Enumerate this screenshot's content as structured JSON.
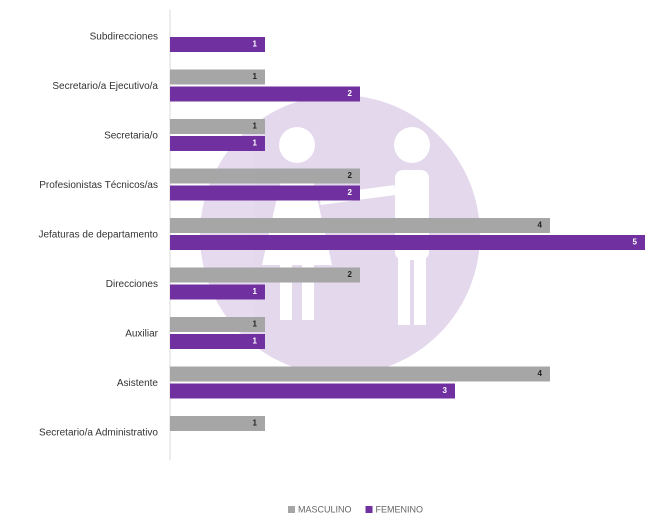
{
  "chart_data": {
    "type": "bar",
    "orientation": "horizontal",
    "categories": [
      "Subdirecciones",
      "Secretario/a Ejecutivo/a",
      "Secretaria/o",
      "Profesionistas Técnicos/as",
      "Jefaturas de departamento",
      "Direcciones",
      "Auxiliar",
      "Asistente",
      "Secretario/a Administrativo"
    ],
    "series": [
      {
        "name": "MASCULINO",
        "color": "#a6a6a6",
        "values": [
          null,
          1,
          1,
          2,
          4,
          2,
          1,
          4,
          1
        ]
      },
      {
        "name": "FEMENINO",
        "color": "#7030a0",
        "values": [
          1,
          2,
          1,
          2,
          5,
          1,
          1,
          3,
          null
        ]
      }
    ],
    "xlim": [
      0,
      5
    ],
    "legend": "bottom"
  }
}
